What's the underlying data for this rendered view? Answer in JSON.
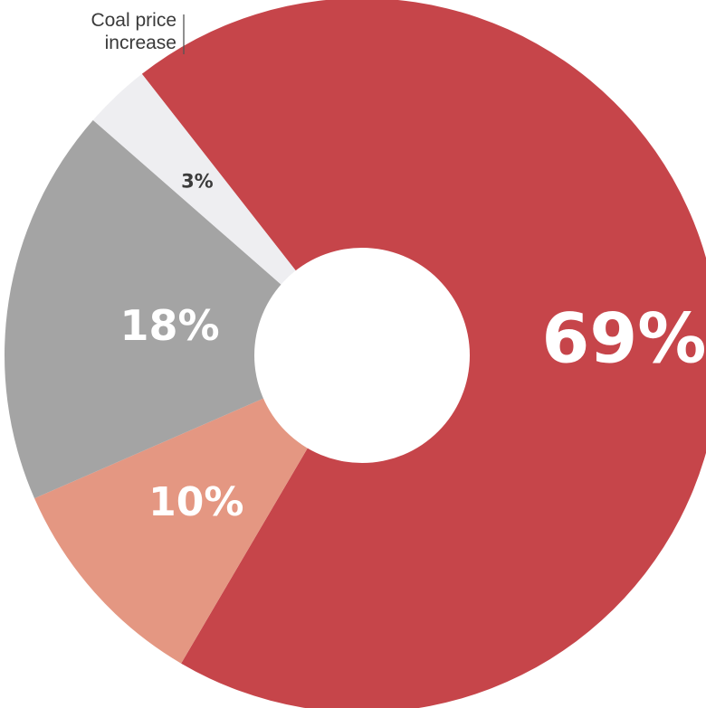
{
  "chart_data": {
    "type": "pie",
    "title": "",
    "labels": [
      "",
      "",
      "",
      "Coal price increase"
    ],
    "values": [
      69,
      10,
      18,
      3
    ],
    "value_labels": [
      "69%",
      "10%",
      "18%",
      "3%"
    ],
    "colors": [
      "#c6454a",
      "#e49782",
      "#a4a4a4",
      "#eeeef1"
    ],
    "label_colors": [
      "#ffffff",
      "#ffffff",
      "#ffffff",
      "#3b3b3b"
    ],
    "donut": true,
    "callout": {
      "line1": "Coal price",
      "line2": "increase"
    }
  }
}
